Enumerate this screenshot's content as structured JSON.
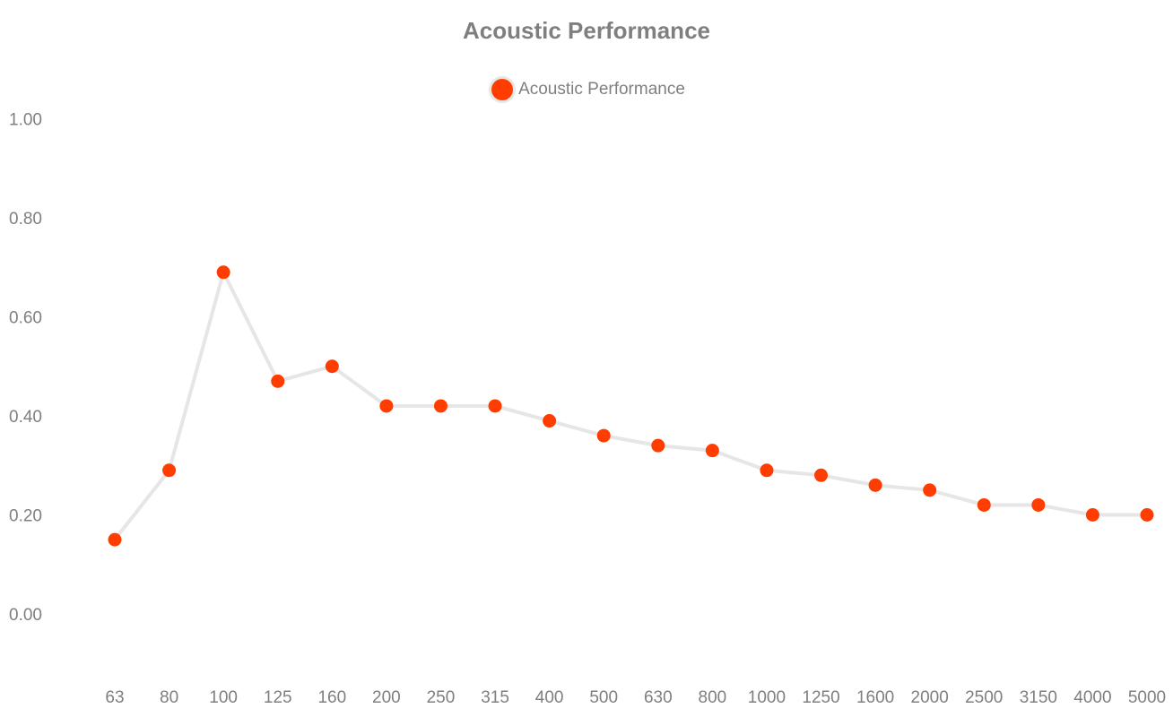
{
  "chart_data": {
    "type": "line",
    "title": "Acoustic Performance",
    "xlabel": "",
    "ylabel": "",
    "categories": [
      "63",
      "80",
      "100",
      "125",
      "160",
      "200",
      "250",
      "315",
      "400",
      "500",
      "630",
      "800",
      "1000",
      "1250",
      "1600",
      "2000",
      "2500",
      "3150",
      "4000",
      "5000"
    ],
    "series": [
      {
        "name": "Acoustic Performance",
        "values": [
          0.15,
          0.29,
          0.69,
          0.47,
          0.5,
          0.42,
          0.42,
          0.42,
          0.39,
          0.36,
          0.34,
          0.33,
          0.29,
          0.28,
          0.26,
          0.25,
          0.22,
          0.22,
          0.2,
          0.2
        ]
      }
    ],
    "ylim": [
      -0.1,
      1.0
    ],
    "yticks": [
      "1.00",
      "0.80",
      "0.60",
      "0.40",
      "0.20",
      "0.00"
    ],
    "ytick_values": [
      1.0,
      0.8,
      0.6,
      0.4,
      0.2,
      0.0
    ],
    "grid": false,
    "legend": "top-center",
    "colors": {
      "point": "#ff3d00",
      "line": "#e6e6e6",
      "text": "#7f7f7f"
    }
  }
}
